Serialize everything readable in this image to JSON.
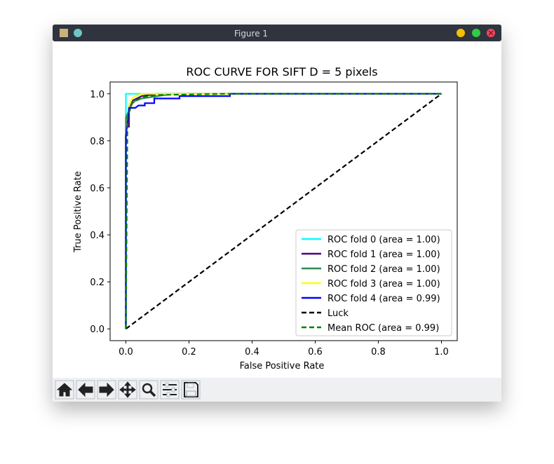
{
  "window": {
    "title": "Figure 1"
  },
  "chart_data": {
    "type": "line",
    "title": "ROC CURVE FOR SIFT D = 5 pixels",
    "x_label": "False Positive Rate",
    "y_label": "True Positive Rate",
    "xlim": [
      -0.05,
      1.05
    ],
    "ylim": [
      -0.05,
      1.05
    ],
    "xticks": [
      {
        "value": 0,
        "label": "0.0"
      },
      0.2,
      0.4,
      0.6,
      0.8,
      {
        "value": 1,
        "label": "1.0"
      }
    ],
    "yticks": [
      {
        "value": 0,
        "label": "0.0"
      },
      0.2,
      0.4,
      0.6,
      0.8,
      {
        "value": 1,
        "label": "1.0"
      }
    ],
    "legend": "lower right",
    "series": [
      {
        "name": "ROC fold 0 (area = 1.00)",
        "color": "#00ffff",
        "linestyle": "solid",
        "x": [
          0,
          0,
          1
        ],
        "values": [
          0,
          1,
          1
        ]
      },
      {
        "name": "ROC fold 1 (area = 1.00)",
        "color": "#4b0082",
        "linestyle": "solid",
        "x": [
          0,
          0,
          0.01,
          0.01,
          0.02,
          0.05,
          0.1,
          1
        ],
        "values": [
          0,
          0.86,
          0.86,
          0.93,
          0.97,
          0.99,
          1,
          1
        ]
      },
      {
        "name": "ROC fold 2 (area = 1.00)",
        "color": "#2e8b57",
        "linestyle": "solid",
        "x": [
          0,
          0,
          0.01,
          0.02,
          0.03,
          0.05,
          0.1,
          0.15,
          1
        ],
        "values": [
          0,
          0.9,
          0.93,
          0.96,
          0.97,
          0.98,
          0.99,
          1,
          1
        ]
      },
      {
        "name": "ROC fold 3 (area = 1.00)",
        "color": "#ffff00",
        "linestyle": "solid",
        "x": [
          0,
          0,
          0.01,
          0.02,
          0.03,
          0.05,
          1
        ],
        "values": [
          0,
          0.83,
          0.95,
          0.98,
          0.99,
          1,
          1
        ]
      },
      {
        "name": "ROC fold 4 (area = 0.99)",
        "color": "#0000ff",
        "linestyle": "solid",
        "x": [
          0,
          0,
          0.01,
          0.03,
          0.04,
          0.06,
          0.06,
          0.09,
          0.09,
          0.17,
          0.17,
          0.33,
          0.33,
          1
        ],
        "values": [
          0,
          0.82,
          0.94,
          0.94,
          0.95,
          0.95,
          0.96,
          0.96,
          0.98,
          0.98,
          0.99,
          0.99,
          1,
          1
        ]
      },
      {
        "name": "Luck",
        "color": "#000000",
        "linestyle": "dashed",
        "x": [
          0,
          1
        ],
        "values": [
          0,
          1
        ]
      },
      {
        "name": "Mean ROC (area = 0.99)",
        "color": "#008000",
        "linestyle": "dashed",
        "x": [
          0,
          0.005,
          0.02,
          0.05,
          0.1,
          0.33,
          1
        ],
        "values": [
          0,
          0.9,
          0.96,
          0.985,
          0.995,
          1,
          1
        ]
      }
    ]
  }
}
